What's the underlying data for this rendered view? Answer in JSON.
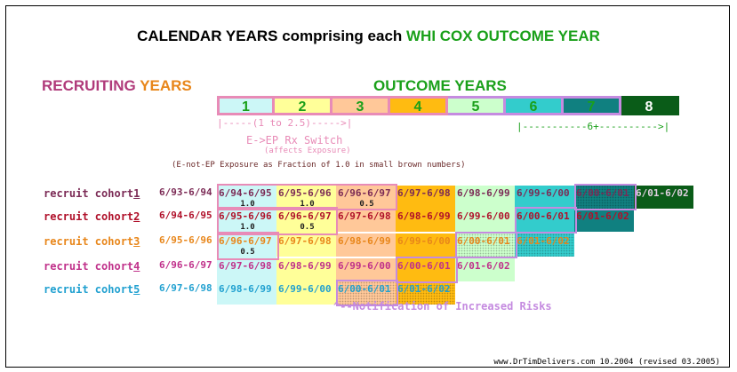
{
  "title": {
    "main": "CALENDAR YEARS comprising each ",
    "highlight": "WHI COX OUTCOME YEAR"
  },
  "recruiting_label": {
    "part1": "RECRUITING ",
    "part2": "YEARS"
  },
  "outcome_label": "OUTCOME YEARS",
  "outcome_years": [
    {
      "label": "1",
      "bg": "#ccf7f7",
      "color": "#1aa01a"
    },
    {
      "label": "2",
      "bg": "#ffff99",
      "color": "#1aa01a"
    },
    {
      "label": "3",
      "bg": "#ffc899",
      "color": "#1aa01a"
    },
    {
      "label": "4",
      "bg": "#ffbb11",
      "color": "#1aa01a"
    },
    {
      "label": "5",
      "bg": "#ccffcc",
      "color": "#1aa01a"
    },
    {
      "label": "6",
      "bg": "#33cccc",
      "color": "#1aa01a"
    },
    {
      "label": "7",
      "bg": "#108080",
      "color": "#1aa01a"
    },
    {
      "label": "8",
      "bg": "#0a5c18",
      "color": "#ffffff"
    }
  ],
  "pink_bracket": "|-----(1 to 2.5)----->|",
  "green_bracket": "|-----------6+---------->|",
  "switch_label": "E->EP Rx Switch",
  "switch_sub": "(affects Exposure)",
  "exposure_note": "(E-not-EP Exposure as Fraction of 1.0 in small brown numbers)",
  "cohorts": [
    {
      "label": "recruit cohort",
      "num": "1",
      "range": "6/93-6/94",
      "color": "#7b2a55"
    },
    {
      "label": "recruit cohort",
      "num": "2",
      "range": "6/94-6/95",
      "color": "#b0102a"
    },
    {
      "label": "recruit cohort",
      "num": "3",
      "range": "6/95-6/96",
      "color": "#e8861a"
    },
    {
      "label": "recruit cohort",
      "num": "4",
      "range": "6/96-6/97",
      "color": "#c0308a"
    },
    {
      "label": "recruit cohort",
      "num": "5",
      "range": "6/97-6/98",
      "color": "#20a0d0"
    }
  ],
  "cells": [
    [
      {
        "t": "6/94-6/95",
        "bg": "#ccf7f7",
        "fg": "#7b2a55",
        "f": "1.0"
      },
      {
        "t": "6/95-6/96",
        "bg": "#ffff99",
        "fg": "#7b2a55",
        "f": "1.0"
      },
      {
        "t": "6/96-6/97",
        "bg": "#ffc899",
        "fg": "#7b2a55",
        "f": "0.5"
      },
      {
        "t": "6/97-6/98",
        "bg": "#ffbb11",
        "fg": "#7b2a55"
      },
      {
        "t": "6/98-6/99",
        "bg": "#ccffcc",
        "fg": "#7b2a55"
      },
      {
        "t": "6/99-6/00",
        "bg": "#33cccc",
        "fg": "#7b2a55"
      },
      {
        "t": "6/00-6/01",
        "bg": "#108080",
        "fg": "#7b2a55"
      },
      {
        "t": "6/01-6/02",
        "bg": "#0a5c18",
        "fg": "#e0d0e0"
      }
    ],
    [
      {
        "t": "6/95-6/96",
        "bg": "#ccf7f7",
        "fg": "#b0102a",
        "f": "1.0"
      },
      {
        "t": "6/96-6/97",
        "bg": "#ffff99",
        "fg": "#b0102a",
        "f": "0.5"
      },
      {
        "t": "6/97-6/98",
        "bg": "#ffc899",
        "fg": "#b0102a"
      },
      {
        "t": "6/98-6/99",
        "bg": "#ffbb11",
        "fg": "#b0102a"
      },
      {
        "t": "6/99-6/00",
        "bg": "#ccffcc",
        "fg": "#b0102a"
      },
      {
        "t": "6/00-6/01",
        "bg": "#33cccc",
        "fg": "#b0102a"
      },
      {
        "t": "6/01-6/02",
        "bg": "#108080",
        "fg": "#b0102a"
      }
    ],
    [
      {
        "t": "6/96-6/97",
        "bg": "#ccf7f7",
        "fg": "#e8861a",
        "f": "0.5"
      },
      {
        "t": "6/97-6/98",
        "bg": "#ffff99",
        "fg": "#e8861a"
      },
      {
        "t": "6/98-6/99",
        "bg": "#ffc899",
        "fg": "#e8861a"
      },
      {
        "t": "6/99-6/00",
        "bg": "#ffbb11",
        "fg": "#e8861a"
      },
      {
        "t": "6/00-6/01",
        "bg": "#ccffcc",
        "fg": "#e8861a"
      },
      {
        "t": "6/01-6/02",
        "bg": "#33cccc",
        "fg": "#e8861a"
      }
    ],
    [
      {
        "t": "6/97-6/98",
        "bg": "#ccf7f7",
        "fg": "#c0308a"
      },
      {
        "t": "6/98-6/99",
        "bg": "#ffff99",
        "fg": "#c0308a"
      },
      {
        "t": "6/99-6/00",
        "bg": "#ffc899",
        "fg": "#c0308a"
      },
      {
        "t": "6/00-6/01",
        "bg": "#ffbb11",
        "fg": "#c0308a"
      },
      {
        "t": "6/01-6/02",
        "bg": "#ccffcc",
        "fg": "#c0308a"
      }
    ],
    [
      {
        "t": "6/98-6/99",
        "bg": "#ccf7f7",
        "fg": "#20a0d0"
      },
      {
        "t": "6/99-6/00",
        "bg": "#ffff99",
        "fg": "#20a0d0"
      },
      {
        "t": "6/00-6/01",
        "bg": "#ffc899",
        "fg": "#20a0d0"
      },
      {
        "t": "6/01-6/02",
        "bg": "#ffbb11",
        "fg": "#20a0d0"
      }
    ]
  ],
  "notification": "^--Notification of Increased Risks",
  "footer": "www.DrTimDelivers.com 10.2004  (revised 03.2005)"
}
